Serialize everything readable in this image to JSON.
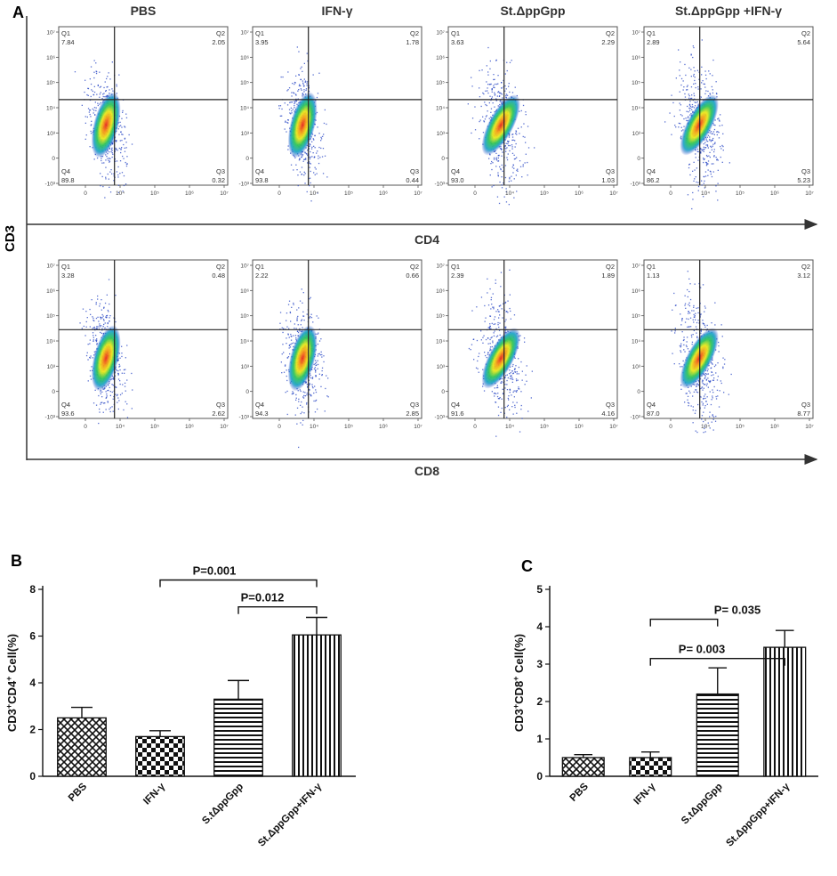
{
  "panel_letters": {
    "a": "A",
    "b": "B",
    "c": "C"
  },
  "flow_cytometry": {
    "group_titles": [
      "PBS",
      "IFN-γ",
      "St.ΔppGpp",
      "St.ΔppGpp +IFN-γ"
    ],
    "y_axis_label": "CD3",
    "row_axis_labels": [
      "CD4",
      "CD8"
    ],
    "quadrant_names": [
      "Q1",
      "Q2",
      "Q3",
      "Q4"
    ],
    "x_tick_labels": [
      "0",
      "10⁴",
      "10⁵",
      "10⁶",
      "10⁷"
    ],
    "y_tick_labels": [
      "10⁷",
      "10⁶",
      "10⁵",
      "10⁴",
      "10³",
      "0",
      "-10³"
    ],
    "rows": [
      {
        "marker": "CD4",
        "quadrants": [
          {
            "Q1": "7.84",
            "Q2": "2.05",
            "Q3": "0.32",
            "Q4": "89.8"
          },
          {
            "Q1": "3.95",
            "Q2": "1.78",
            "Q3": "0.44",
            "Q4": "93.8"
          },
          {
            "Q1": "3.63",
            "Q2": "2.29",
            "Q3": "1.03",
            "Q4": "93.0"
          },
          {
            "Q1": "2.89",
            "Q2": "5.64",
            "Q3": "5.23",
            "Q4": "86.2"
          }
        ]
      },
      {
        "marker": "CD8",
        "quadrants": [
          {
            "Q1": "3.28",
            "Q2": "0.48",
            "Q3": "2.62",
            "Q4": "93.6"
          },
          {
            "Q1": "2.22",
            "Q2": "0.66",
            "Q3": "2.85",
            "Q4": "94.3"
          },
          {
            "Q1": "2.39",
            "Q2": "1.89",
            "Q3": "4.16",
            "Q4": "91.6"
          },
          {
            "Q1": "1.13",
            "Q2": "3.12",
            "Q3": "8.77",
            "Q4": "87.0"
          }
        ]
      }
    ]
  },
  "chart_data": [
    {
      "type": "bar",
      "panel": "B",
      "ylabel_parts": [
        "CD3",
        "+",
        "CD4",
        "+",
        " Cell(%)"
      ],
      "categories": [
        "PBS",
        "IFN-γ",
        "S.tΔppGpp",
        "St.ΔppGpp+IFN-γ"
      ],
      "values": [
        2.5,
        1.7,
        3.3,
        6.05
      ],
      "errors": [
        0.45,
        0.25,
        0.8,
        0.75
      ],
      "patterns": [
        "cross",
        "checker",
        "horizontal",
        "vertical"
      ],
      "ylim": [
        0,
        8
      ],
      "yticks": [
        0,
        2,
        4,
        6,
        8
      ],
      "significance": [
        {
          "from": 1,
          "to": 3,
          "label": "P=0.001"
        },
        {
          "from": 2,
          "to": 3,
          "label": "P=0.012"
        }
      ]
    },
    {
      "type": "bar",
      "panel": "C",
      "ylabel_parts": [
        "CD3",
        "+",
        "CD8",
        "+",
        " Cell(%)"
      ],
      "categories": [
        "PBS",
        "IFN-γ",
        "S.tΔppGpp",
        "St.ΔppGpp+IFN-γ"
      ],
      "values": [
        0.5,
        0.5,
        2.2,
        3.45
      ],
      "errors": [
        0.08,
        0.15,
        0.7,
        0.45
      ],
      "patterns": [
        "cross",
        "checker",
        "horizontal",
        "vertical"
      ],
      "ylim": [
        0,
        5
      ],
      "yticks": [
        0,
        1,
        2,
        3,
        4,
        5
      ],
      "significance": [
        {
          "from": 1,
          "to": 2,
          "label": "P= 0.035"
        },
        {
          "from": 1,
          "to": 3,
          "label": "P= 0.003"
        }
      ]
    }
  ]
}
